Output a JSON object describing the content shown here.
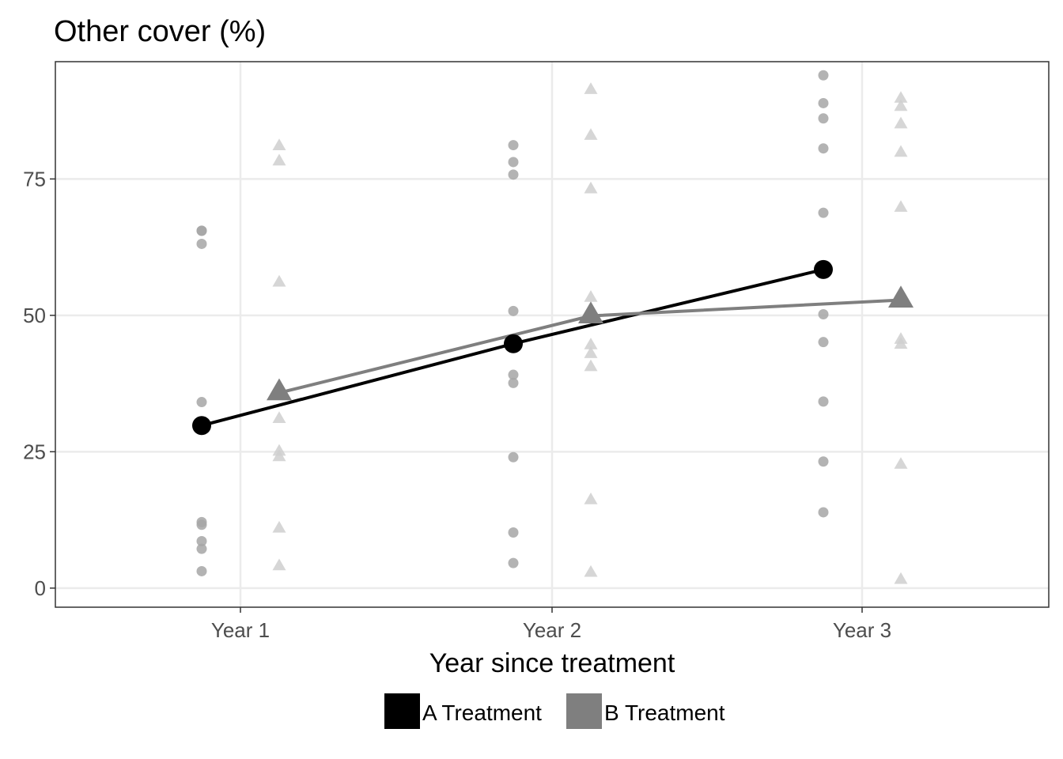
{
  "chart_data": {
    "type": "scatter",
    "title": "Other cover (%)",
    "xlabel": "Year since treatment",
    "ylabel": "",
    "categories": [
      "Year 1",
      "Year 2",
      "Year 3"
    ],
    "ylim": [
      -3.5,
      96.5
    ],
    "yticks": [
      0,
      25,
      50,
      75
    ],
    "grid": true,
    "legend_position": "bottom",
    "series": [
      {
        "name": "A Treatment",
        "color": "#000000",
        "point_color": "#a6a6a6",
        "marker": "circle",
        "means": [
          29.8,
          44.8,
          58.4
        ],
        "points": [
          [
            65.5,
            65.5,
            63.1,
            34.1,
            12.1,
            11.6,
            8.6,
            7.2,
            3.1
          ],
          [
            81.2,
            78.1,
            75.8,
            50.8,
            39.1,
            37.6,
            24.0,
            10.2,
            4.6
          ],
          [
            94.0,
            88.9,
            86.1,
            80.6,
            68.8,
            50.2,
            45.1,
            34.2,
            23.2,
            13.9
          ]
        ]
      },
      {
        "name": "B Treatment",
        "color": "#7f7f7f",
        "point_color": "#cfcfcf",
        "marker": "triangle",
        "means": [
          35.8,
          49.9,
          52.8
        ],
        "points": [
          [
            81.0,
            78.2,
            56.0,
            31.0,
            25.0,
            24.0,
            10.9,
            4.0
          ],
          [
            91.3,
            82.9,
            73.1,
            53.2,
            44.5,
            42.9,
            40.5,
            16.1,
            2.8
          ],
          [
            89.7,
            88.2,
            85.0,
            79.8,
            69.7,
            45.5,
            44.6,
            22.6,
            1.5
          ]
        ]
      }
    ]
  }
}
